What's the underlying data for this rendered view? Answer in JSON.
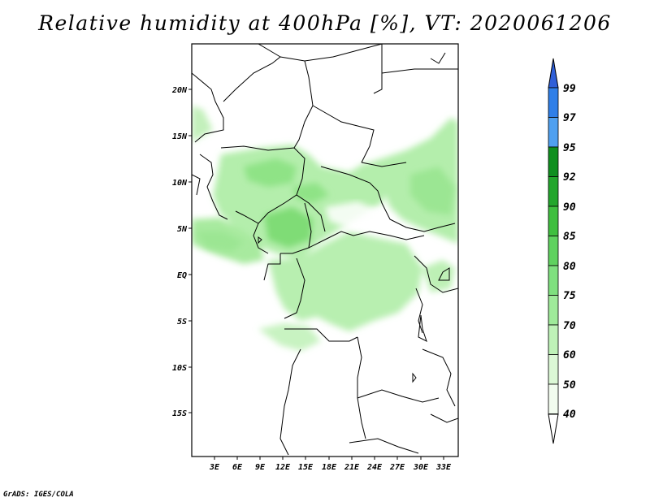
{
  "title": "Relative humidity at 400hPa [%], VT: 2020061206",
  "credit": "GrADS: IGES/COLA",
  "lat_ticks": [
    "20N",
    "15N",
    "10N",
    "5N",
    "EQ",
    "5S",
    "10S",
    "15S"
  ],
  "lon_ticks": [
    "3E",
    "6E",
    "9E",
    "12E",
    "15E",
    "18E",
    "21E",
    "24E",
    "27E",
    "30E",
    "33E"
  ],
  "colorbar": {
    "levels": [
      "99",
      "97",
      "95",
      "92",
      "90",
      "85",
      "80",
      "75",
      "70",
      "60",
      "50",
      "40"
    ],
    "colors": [
      "#2f5fd8",
      "#2f7fe8",
      "#4fa0f0",
      "#0f8f1f",
      "#23a62c",
      "#3fbf3f",
      "#5fd25f",
      "#7fe07f",
      "#9fea9a",
      "#bff2b8",
      "#dcf8d6",
      "#f2fcef"
    ]
  }
}
